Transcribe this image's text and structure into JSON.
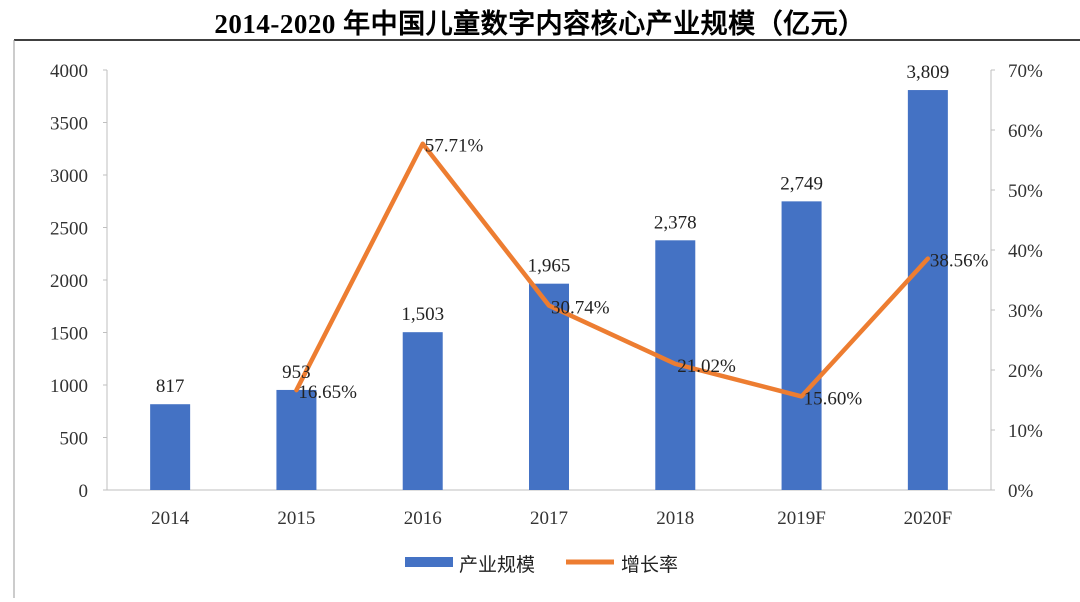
{
  "title": "2014-2020 年中国儿童数字内容核心产业规模（亿元）",
  "chart_data": {
    "type": "bar+line",
    "categories": [
      "2014",
      "2015",
      "2016",
      "2017",
      "2018",
      "2019F",
      "2020F"
    ],
    "series": [
      {
        "name": "产业规模",
        "kind": "bar",
        "axis": "left",
        "color": "#4472C4",
        "values": [
          817,
          953,
          1503,
          1965,
          2378,
          2749,
          3809
        ],
        "labels": [
          "817",
          "953",
          "1,503",
          "1,965",
          "2,378",
          "2,749",
          "3,809"
        ]
      },
      {
        "name": "增长率",
        "kind": "line",
        "axis": "right",
        "color": "#ED7D31",
        "values": [
          null,
          16.65,
          57.71,
          30.74,
          21.02,
          15.6,
          38.56
        ],
        "labels": [
          null,
          "16.65%",
          "57.71%",
          "30.74%",
          "21.02%",
          "15.60%",
          "38.56%"
        ]
      }
    ],
    "y_left": {
      "min": 0,
      "max": 4000,
      "ticks": [
        "0",
        "500",
        "1000",
        "1500",
        "2000",
        "2500",
        "3000",
        "3500",
        "4000"
      ]
    },
    "y_right": {
      "min": 0,
      "max": 70,
      "ticks": [
        "0%",
        "10%",
        "20%",
        "30%",
        "40%",
        "50%",
        "60%",
        "70%"
      ]
    },
    "legend": [
      "产业规模",
      "增长率"
    ],
    "legend_position": "bottom"
  }
}
